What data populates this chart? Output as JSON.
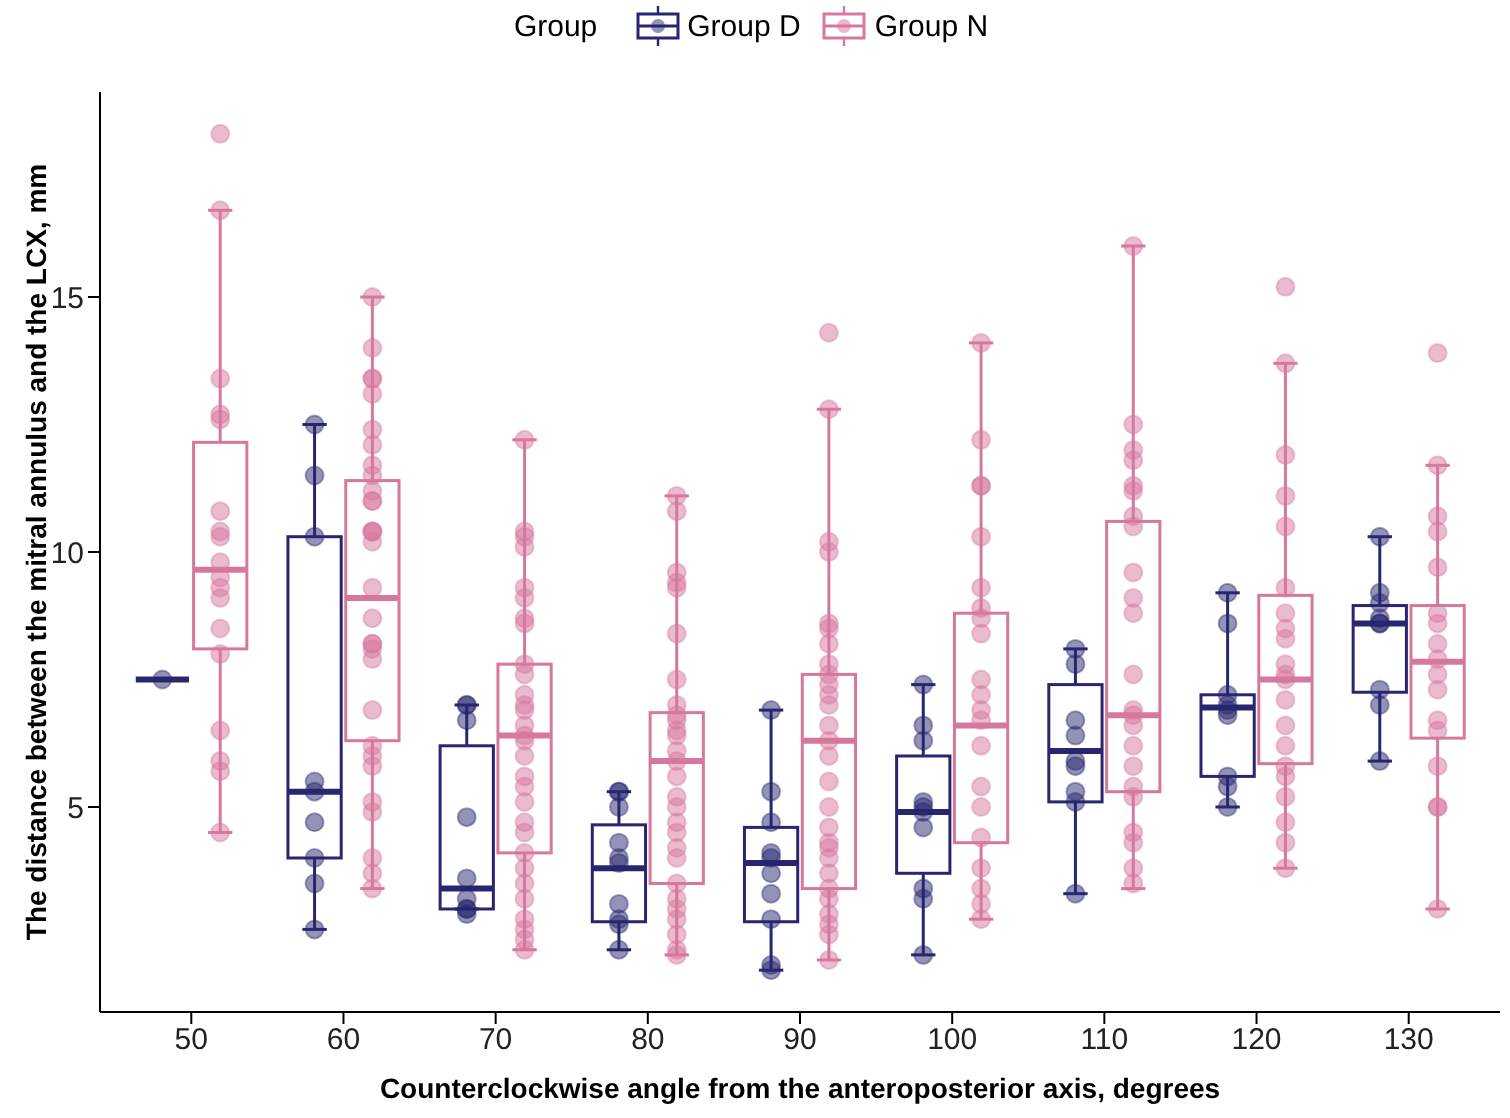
{
  "chart_data": {
    "type": "box",
    "xlabel": "Counterclockwise angle from the anteroposterior axis, degrees",
    "ylabel": "The distance between the mitral annulus and the LCX, mm",
    "legend_title": "Group",
    "legend": "top",
    "categories": [
      "50",
      "60",
      "70",
      "80",
      "90",
      "100",
      "110",
      "120",
      "130"
    ],
    "ylim": [
      0.98,
      19.02
    ],
    "yticks": [
      5,
      10,
      15
    ],
    "series": [
      {
        "name": "Group D",
        "color": "#28266f",
        "boxes": [
          {
            "low": 7.5,
            "q1": 7.5,
            "median": 7.5,
            "q3": 7.5,
            "high": 7.5
          },
          {
            "low": 2.6,
            "q1": 4.0,
            "median": 5.3,
            "q3": 10.3,
            "high": 12.5
          },
          {
            "low": 3.0,
            "q1": 3.0,
            "median": 3.4,
            "q3": 6.2,
            "high": 7.0
          },
          {
            "low": 2.2,
            "q1": 2.75,
            "median": 3.8,
            "q3": 4.65,
            "high": 5.3
          },
          {
            "low": 1.8,
            "q1": 2.75,
            "median": 3.9,
            "q3": 4.6,
            "high": 6.9
          },
          {
            "low": 2.1,
            "q1": 3.7,
            "median": 4.9,
            "q3": 6.0,
            "high": 7.4
          },
          {
            "low": 3.3,
            "q1": 5.1,
            "median": 6.1,
            "q3": 7.4,
            "high": 8.1
          },
          {
            "low": 5.0,
            "q1": 5.6,
            "median": 6.95,
            "q3": 7.2,
            "high": 9.2
          },
          {
            "low": 5.9,
            "q1": 7.25,
            "median": 8.6,
            "q3": 8.95,
            "high": 10.3
          }
        ]
      },
      {
        "name": "Group N",
        "color": "#d6789d",
        "boxes": [
          {
            "low": 4.5,
            "q1": 8.1,
            "median": 9.65,
            "q3": 12.15,
            "high": 16.7
          },
          {
            "low": 3.4,
            "q1": 6.3,
            "median": 9.1,
            "q3": 11.4,
            "high": 15.0
          },
          {
            "low": 2.2,
            "q1": 4.1,
            "median": 6.4,
            "q3": 7.8,
            "high": 12.2
          },
          {
            "low": 2.1,
            "q1": 3.5,
            "median": 5.9,
            "q3": 6.85,
            "high": 11.1
          },
          {
            "low": 2.0,
            "q1": 3.4,
            "median": 6.3,
            "q3": 7.6,
            "high": 12.8
          },
          {
            "low": 2.8,
            "q1": 4.3,
            "median": 6.6,
            "q3": 8.8,
            "high": 14.1
          },
          {
            "low": 3.4,
            "q1": 5.3,
            "median": 6.8,
            "q3": 10.6,
            "high": 16.0
          },
          {
            "low": 3.8,
            "q1": 5.85,
            "median": 7.5,
            "q3": 9.15,
            "high": 13.7
          },
          {
            "low": 3.0,
            "q1": 6.35,
            "median": 7.85,
            "q3": 8.95,
            "high": 11.7
          }
        ]
      },
      {
        "type": "scatter",
        "color": "#28266f",
        "x": [
          "50",
          "60",
          "60",
          "60",
          "60",
          "60",
          "60",
          "60",
          "60",
          "60",
          "70",
          "70",
          "70",
          "70",
          "70",
          "70",
          "70",
          "70",
          "70",
          "80",
          "80",
          "80",
          "80",
          "80",
          "80",
          "80",
          "80",
          "80",
          "80",
          "90",
          "90",
          "90",
          "90",
          "90",
          "90",
          "90",
          "90",
          "90",
          "90",
          "100",
          "100",
          "100",
          "100",
          "100",
          "100",
          "100",
          "100",
          "100",
          "100",
          "110",
          "110",
          "110",
          "110",
          "110",
          "110",
          "110",
          "110",
          "110",
          "120",
          "120",
          "120",
          "120",
          "120",
          "120",
          "120",
          "120",
          "120",
          "130",
          "130",
          "130",
          "130",
          "130",
          "130",
          "130",
          "130",
          "130"
        ],
        "values": [
          7.5,
          12.5,
          11.5,
          10.3,
          5.5,
          5.3,
          4.7,
          4.0,
          3.5,
          2.6,
          7.0,
          7.0,
          6.7,
          4.8,
          3.6,
          3.2,
          3.0,
          2.9,
          3.0,
          5.3,
          5.3,
          5.0,
          4.3,
          4.0,
          3.9,
          3.1,
          2.8,
          2.7,
          2.2,
          6.9,
          5.3,
          4.7,
          4.1,
          4.0,
          3.7,
          3.3,
          2.8,
          1.9,
          1.8,
          7.4,
          6.6,
          6.3,
          5.1,
          5.0,
          4.9,
          4.6,
          3.4,
          3.2,
          2.1,
          8.1,
          7.8,
          6.7,
          6.4,
          5.9,
          5.8,
          5.3,
          5.1,
          3.3,
          9.2,
          8.6,
          7.2,
          7.0,
          6.9,
          6.8,
          5.6,
          5.4,
          5.0,
          10.3,
          9.2,
          9.0,
          8.7,
          8.6,
          8.6,
          7.3,
          7.0,
          5.9
        ]
      },
      {
        "type": "scatter",
        "color": "#d6789d",
        "x": [
          "50",
          "50",
          "50",
          "50",
          "50",
          "50",
          "50",
          "50",
          "50",
          "50",
          "50",
          "50",
          "50",
          "50",
          "50",
          "50",
          "50",
          "50",
          "60",
          "60",
          "60",
          "60",
          "60",
          "60",
          "60",
          "60",
          "60",
          "60",
          "60",
          "60",
          "60",
          "60",
          "60",
          "60",
          "60",
          "60",
          "60",
          "60",
          "60",
          "60",
          "60",
          "60",
          "60",
          "60",
          "60",
          "60",
          "60",
          "60",
          "60",
          "70",
          "70",
          "70",
          "70",
          "70",
          "70",
          "70",
          "70",
          "70",
          "70",
          "70",
          "70",
          "70",
          "70",
          "70",
          "70",
          "70",
          "70",
          "70",
          "70",
          "70",
          "70",
          "70",
          "70",
          "70",
          "70",
          "70",
          "70",
          "70",
          "70",
          "80",
          "80",
          "80",
          "80",
          "80",
          "80",
          "80",
          "80",
          "80",
          "80",
          "80",
          "80",
          "80",
          "80",
          "80",
          "80",
          "80",
          "80",
          "80",
          "80",
          "80",
          "80",
          "80",
          "80",
          "80",
          "80",
          "80",
          "80",
          "90",
          "90",
          "90",
          "90",
          "90",
          "90",
          "90",
          "90",
          "90",
          "90",
          "90",
          "90",
          "90",
          "90",
          "90",
          "90",
          "90",
          "90",
          "90",
          "90",
          "90",
          "90",
          "90",
          "90",
          "90",
          "90",
          "90",
          "90",
          "100",
          "100",
          "100",
          "100",
          "100",
          "100",
          "100",
          "100",
          "100",
          "100",
          "100",
          "100",
          "100",
          "100",
          "100",
          "100",
          "100",
          "100",
          "100",
          "100",
          "100",
          "110",
          "110",
          "110",
          "110",
          "110",
          "110",
          "110",
          "110",
          "110",
          "110",
          "110",
          "110",
          "110",
          "110",
          "110",
          "110",
          "110",
          "110",
          "110",
          "110",
          "110",
          "110",
          "110",
          "120",
          "120",
          "120",
          "120",
          "120",
          "120",
          "120",
          "120",
          "120",
          "120",
          "120",
          "120",
          "120",
          "120",
          "120",
          "120",
          "120",
          "120",
          "120",
          "120",
          "120",
          "130",
          "130",
          "130",
          "130",
          "130",
          "130",
          "130",
          "130",
          "130",
          "130",
          "130",
          "130",
          "130",
          "130",
          "130",
          "130",
          "130"
        ],
        "values": [
          18.2,
          16.7,
          13.4,
          12.7,
          12.6,
          10.8,
          10.4,
          10.3,
          9.8,
          9.5,
          9.3,
          9.1,
          8.5,
          8.0,
          6.5,
          5.9,
          5.7,
          4.5,
          15.0,
          14.0,
          13.4,
          13.4,
          13.1,
          12.4,
          12.1,
          11.7,
          11.5,
          11.2,
          11.0,
          11.0,
          10.4,
          10.4,
          10.2,
          10.4,
          9.3,
          8.7,
          8.2,
          8.1,
          8.2,
          7.9,
          6.9,
          6.2,
          6.0,
          5.8,
          5.1,
          4.9,
          4.0,
          3.7,
          3.4,
          12.2,
          10.4,
          10.3,
          10.1,
          9.3,
          9.1,
          8.7,
          8.6,
          7.8,
          7.6,
          7.2,
          7.0,
          6.9,
          6.6,
          6.4,
          6.3,
          6.0,
          5.6,
          5.4,
          5.1,
          4.7,
          4.5,
          4.1,
          3.8,
          3.5,
          3.2,
          2.8,
          2.6,
          2.4,
          2.2,
          11.1,
          10.8,
          9.6,
          9.4,
          9.3,
          8.4,
          7.5,
          7.0,
          6.8,
          6.7,
          6.5,
          6.4,
          6.1,
          5.9,
          5.6,
          5.2,
          5.0,
          4.7,
          4.5,
          4.2,
          4.0,
          3.5,
          3.2,
          3.0,
          2.8,
          2.5,
          2.2,
          2.1,
          14.3,
          12.8,
          10.0,
          10.2,
          8.6,
          8.5,
          8.2,
          7.8,
          7.6,
          7.4,
          7.2,
          7.0,
          6.6,
          6.3,
          6.0,
          5.5,
          5.0,
          4.6,
          4.3,
          4.2,
          4.0,
          3.7,
          3.4,
          3.2,
          2.9,
          2.7,
          2.5,
          2.0,
          14.1,
          12.2,
          11.3,
          11.3,
          10.3,
          9.3,
          8.9,
          8.7,
          8.4,
          7.5,
          7.2,
          6.9,
          6.7,
          6.2,
          5.4,
          5.0,
          4.4,
          3.8,
          3.4,
          3.1,
          2.8,
          16.0,
          12.5,
          12.0,
          11.8,
          11.3,
          11.2,
          10.7,
          10.5,
          9.6,
          9.1,
          8.8,
          7.6,
          6.9,
          6.8,
          6.6,
          6.2,
          5.8,
          5.4,
          5.2,
          4.5,
          4.3,
          3.8,
          3.5,
          15.2,
          13.7,
          11.9,
          11.1,
          10.5,
          9.3,
          8.8,
          8.5,
          8.3,
          7.8,
          7.6,
          7.5,
          7.1,
          6.6,
          6.2,
          5.8,
          5.6,
          5.2,
          4.7,
          4.3,
          3.8,
          13.9,
          11.7,
          10.7,
          10.4,
          9.7,
          8.8,
          8.6,
          8.2,
          7.9,
          7.6,
          7.3,
          6.7,
          6.5,
          5.8,
          5.0,
          5.0,
          3.0
        ]
      }
    ]
  }
}
